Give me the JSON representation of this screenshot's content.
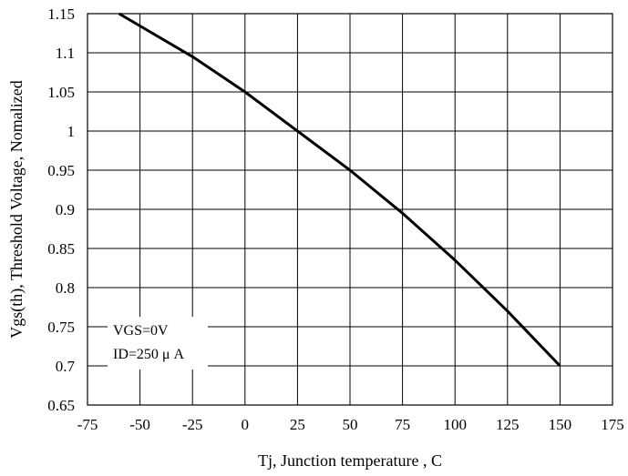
{
  "chart_data": {
    "type": "line",
    "title": "",
    "xlabel": "Tj, Junction temperature , C",
    "ylabel": "Vgs(th), Threshold Voltage, Nomalized",
    "xlim": [
      -75,
      175
    ],
    "ylim": [
      0.65,
      1.15
    ],
    "xticks": [
      -75,
      -50,
      -25,
      0,
      25,
      50,
      75,
      100,
      125,
      150,
      175
    ],
    "yticks": [
      0.65,
      0.7,
      0.75,
      0.8,
      0.85,
      0.9,
      0.95,
      1,
      1.05,
      1.1,
      1.15
    ],
    "xtick_labels": [
      "-75",
      "-50",
      "-25",
      "0",
      "25",
      "50",
      "75",
      "100",
      "125",
      "150",
      "175"
    ],
    "ytick_labels": [
      "0.65",
      "0.7",
      "0.75",
      "0.8",
      "0.85",
      "0.9",
      "0.95",
      "1",
      "1.05",
      "1.1",
      "1.15"
    ],
    "grid": true,
    "series": [
      {
        "x": [
          -60,
          -25,
          0,
          25,
          50,
          75,
          100,
          125,
          150
        ],
        "y": [
          1.15,
          1.095,
          1.05,
          1.0,
          0.95,
          0.895,
          0.835,
          0.77,
          0.7
        ]
      }
    ],
    "annotations": [
      "VGS=0V",
      "ID=250 μ A"
    ]
  }
}
